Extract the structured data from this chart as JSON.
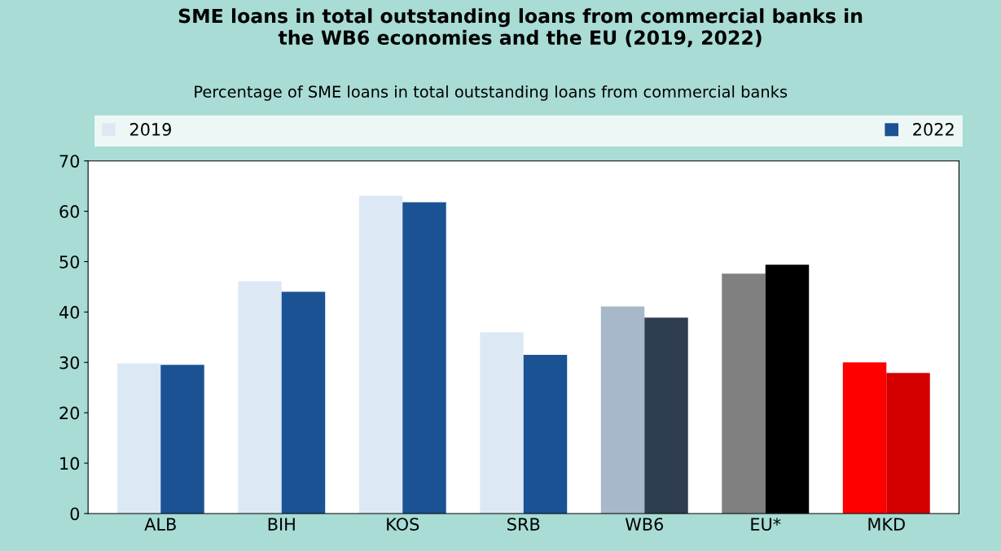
{
  "chart_data": {
    "type": "bar",
    "title": "SME loans in total outstanding loans from commercial banks in\nthe WB6 economies and the EU (2019, 2022)",
    "subtitle": "Percentage of SME loans in total outstanding loans from commercial banks",
    "categories": [
      "ALB",
      "BIH",
      "KOS",
      "SRB",
      "WB6",
      "EU*",
      "MKD"
    ],
    "series": [
      {
        "name": "2019",
        "color": "#dce9f5",
        "colors": [
          "#dce9f5",
          "#dce9f5",
          "#dce9f5",
          "#dce9f5",
          "#a7b8cb",
          "#808080",
          "#ff0000"
        ],
        "values": [
          29.8,
          46.1,
          63.1,
          36.0,
          41.1,
          47.6,
          30.0
        ]
      },
      {
        "name": "2022",
        "color": "#1a5294",
        "colors": [
          "#1a5294",
          "#1a5294",
          "#1a5294",
          "#1a5294",
          "#2e3e50",
          "#000000",
          "#d40000"
        ],
        "values": [
          29.5,
          44.0,
          61.8,
          31.5,
          38.9,
          49.4,
          27.9
        ]
      }
    ],
    "ylim": [
      0,
      70
    ],
    "yticks": [
      0,
      10,
      20,
      30,
      40,
      50,
      60,
      70
    ],
    "grid": false,
    "legend": "top"
  }
}
